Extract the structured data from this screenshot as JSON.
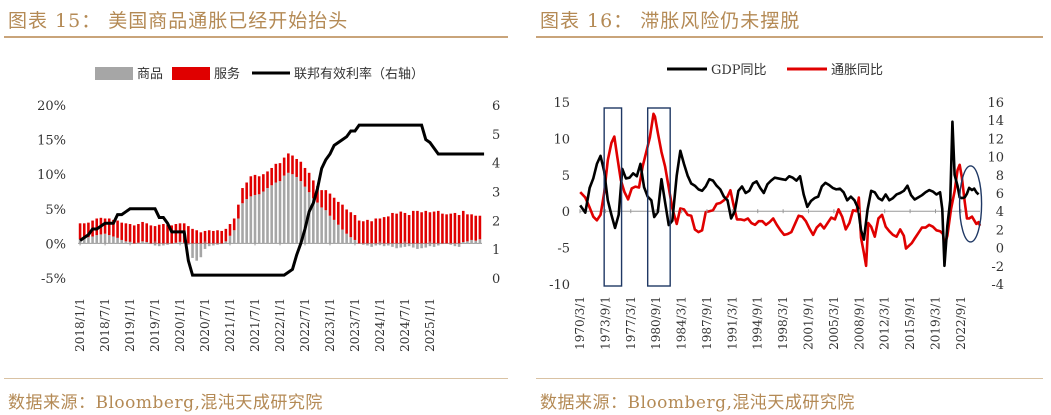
{
  "left": {
    "title": "图表 15：  美国商品通胀已经开始抬头",
    "source": "数据来源：Bloomberg,混沌天成研究院",
    "chart_data": {
      "type": "bar+line",
      "legend": [
        "商品",
        "服务",
        "联邦有效利率（右轴）"
      ],
      "legend_position": "top",
      "y_left": {
        "ticks": [
          "20%",
          "15%",
          "10%",
          "5%",
          "0%",
          "-5%"
        ],
        "range": [
          -5,
          20
        ]
      },
      "y_right": {
        "ticks": [
          "6",
          "5",
          "4",
          "3",
          "2",
          "1",
          "0"
        ],
        "range": [
          0,
          6
        ]
      },
      "x_ticks": [
        "2018/1/1",
        "2018/7/1",
        "2019/1/1",
        "2019/7/1",
        "2020/1/1",
        "2020/7/1",
        "2021/1/1",
        "2021/7/1",
        "2022/1/1",
        "2022/7/1",
        "2023/1/1",
        "2023/7/1",
        "2024/1/1",
        "2024/7/1",
        "2025/1/1"
      ],
      "x_start": "2018-01",
      "goods": [
        0.6,
        0.7,
        0.9,
        1.0,
        1.2,
        1.3,
        1.4,
        1.2,
        1.0,
        0.8,
        0.5,
        0.3,
        0.2,
        0.0,
        0.1,
        0.3,
        0.2,
        -0.1,
        -0.3,
        -0.4,
        -0.3,
        -0.2,
        0.0,
        0.1,
        0.2,
        0.1,
        -0.2,
        -2.1,
        -2.5,
        -2.0,
        -0.8,
        -0.4,
        -0.3,
        -0.2,
        -0.1,
        0.3,
        1.1,
        1.9,
        3.6,
        5.8,
        6.4,
        6.8,
        7.0,
        7.1,
        7.5,
        8.0,
        8.4,
        8.8,
        9.0,
        9.8,
        10.2,
        10.0,
        9.6,
        9.0,
        8.2,
        7.4,
        6.5,
        5.9,
        5.2,
        4.8,
        4.0,
        3.4,
        2.7,
        2.0,
        1.4,
        0.9,
        0.5,
        0.0,
        -0.2,
        -0.3,
        -0.5,
        -0.3,
        -0.2,
        -0.4,
        -0.3,
        -0.5,
        -0.7,
        -0.6,
        -0.5,
        -0.4,
        -0.6,
        -0.8,
        -0.7,
        -0.6,
        -0.4,
        -0.5,
        -0.3,
        -0.1,
        0.0,
        -0.2,
        -0.4,
        -0.5,
        0.2,
        0.3,
        0.5,
        0.4,
        0.6
      ],
      "services": [
        2.3,
        2.2,
        2.1,
        2.3,
        2.4,
        2.4,
        2.2,
        2.4,
        2.4,
        2.5,
        2.5,
        2.6,
        2.6,
        2.6,
        2.7,
        2.8,
        2.7,
        2.6,
        2.5,
        2.7,
        2.8,
        2.7,
        2.6,
        2.7,
        2.7,
        2.8,
        2.5,
        2.1,
        1.9,
        1.6,
        1.8,
        1.9,
        1.8,
        1.9,
        1.8,
        1.8,
        1.7,
        1.7,
        2.0,
        2.2,
        2.4,
        2.9,
        2.9,
        2.6,
        2.5,
        2.4,
        2.5,
        2.7,
        2.6,
        2.6,
        2.8,
        2.7,
        2.6,
        2.8,
        2.7,
        2.8,
        2.6,
        2.4,
        2.5,
        2.9,
        3.2,
        3.2,
        3.3,
        3.6,
        3.5,
        3.6,
        3.6,
        3.3,
        3.2,
        3.4,
        3.2,
        3.6,
        3.6,
        3.8,
        3.9,
        4.4,
        4.3,
        4.6,
        4.4,
        4.1,
        4.7,
        4.7,
        4.5,
        4.7,
        4.5,
        4.6,
        4.7,
        4.3,
        4.2,
        4.3,
        4.4,
        4.1,
        4.5,
        3.9,
        3.7,
        3.6,
        3.4
      ],
      "fed_funds": [
        1.3,
        1.4,
        1.5,
        1.7,
        1.7,
        1.8,
        1.9,
        1.9,
        1.9,
        2.2,
        2.2,
        2.3,
        2.4,
        2.4,
        2.4,
        2.4,
        2.4,
        2.4,
        2.4,
        2.1,
        2.1,
        1.9,
        1.6,
        1.6,
        1.6,
        1.6,
        0.6,
        0.1,
        0.1,
        0.1,
        0.1,
        0.1,
        0.1,
        0.1,
        0.1,
        0.1,
        0.1,
        0.1,
        0.1,
        0.1,
        0.1,
        0.1,
        0.1,
        0.1,
        0.1,
        0.1,
        0.1,
        0.1,
        0.1,
        0.1,
        0.2,
        0.3,
        0.8,
        1.2,
        1.7,
        2.3,
        2.6,
        3.1,
        3.8,
        4.1,
        4.3,
        4.6,
        4.7,
        4.8,
        4.9,
        5.1,
        5.1,
        5.3,
        5.3,
        5.3,
        5.3,
        5.3,
        5.3,
        5.3,
        5.3,
        5.3,
        5.3,
        5.3,
        5.3,
        5.3,
        5.3,
        5.3,
        5.3,
        4.8,
        4.7,
        4.5,
        4.3,
        4.3,
        4.3,
        4.3,
        4.3,
        4.3,
        4.3,
        4.3,
        4.3,
        4.3,
        4.3,
        4.3
      ]
    }
  },
  "right": {
    "title": "图表 16：  滞胀风险仍未摆脱",
    "source": "数据来源：Bloomberg,混沌天成研究院",
    "chart_data": {
      "type": "line",
      "legend": [
        "GDP同比",
        "通胀同比"
      ],
      "legend_position": "top",
      "y_left": {
        "ticks": [
          "15",
          "10",
          "5",
          "0",
          "-5",
          "-10"
        ],
        "range": [
          -10,
          15
        ]
      },
      "y_right": {
        "ticks": [
          "16",
          "14",
          "12",
          "10",
          "8",
          "6",
          "4",
          "2",
          "0",
          "-2",
          "-4"
        ],
        "range": [
          -4,
          16
        ]
      },
      "x_ticks": [
        "1970/3/1",
        "1973/9/1",
        "1977/3/1",
        "1980/9/1",
        "1984/3/1",
        "1987/9/1",
        "1991/3/1",
        "1994/9/1",
        "1998/3/1",
        "2001/9/1",
        "2005/3/1",
        "2008/9/1",
        "2012/3/1",
        "2015/9/1",
        "2019/3/1",
        "2022/9/1"
      ],
      "x_range": [
        1970.17,
        2025.3
      ],
      "gdp": [
        [
          1970.2,
          0.8
        ],
        [
          1970.9,
          -0.2
        ],
        [
          1971.5,
          3.2
        ],
        [
          1972.0,
          4.5
        ],
        [
          1972.5,
          6.5
        ],
        [
          1973.0,
          7.6
        ],
        [
          1973.5,
          5.5
        ],
        [
          1974.0,
          1.5
        ],
        [
          1974.5,
          -0.5
        ],
        [
          1975.0,
          -2.3
        ],
        [
          1975.5,
          -0.5
        ],
        [
          1976.0,
          5.8
        ],
        [
          1976.5,
          4.5
        ],
        [
          1977.0,
          4.6
        ],
        [
          1977.5,
          5.2
        ],
        [
          1978.0,
          4.8
        ],
        [
          1978.5,
          6.5
        ],
        [
          1979.0,
          3.3
        ],
        [
          1979.5,
          2.0
        ],
        [
          1980.0,
          1.5
        ],
        [
          1980.4,
          -0.8
        ],
        [
          1980.9,
          -0.1
        ],
        [
          1981.4,
          4.4
        ],
        [
          1981.9,
          1.2
        ],
        [
          1982.4,
          -1.9
        ],
        [
          1982.9,
          -1.3
        ],
        [
          1983.5,
          4.9
        ],
        [
          1984.0,
          8.3
        ],
        [
          1984.5,
          6.5
        ],
        [
          1985.0,
          4.9
        ],
        [
          1985.5,
          3.8
        ],
        [
          1986.0,
          3.5
        ],
        [
          1986.5,
          3.0
        ],
        [
          1987.0,
          2.8
        ],
        [
          1987.5,
          3.4
        ],
        [
          1988.0,
          4.4
        ],
        [
          1988.5,
          4.2
        ],
        [
          1989.0,
          3.5
        ],
        [
          1989.5,
          3.0
        ],
        [
          1990.0,
          2.0
        ],
        [
          1990.5,
          1.5
        ],
        [
          1991.0,
          -1.0
        ],
        [
          1991.5,
          0.0
        ],
        [
          1992.0,
          2.8
        ],
        [
          1992.5,
          3.4
        ],
        [
          1993.0,
          2.5
        ],
        [
          1993.5,
          2.8
        ],
        [
          1994.0,
          3.8
        ],
        [
          1994.5,
          4.1
        ],
        [
          1995.0,
          3.2
        ],
        [
          1995.5,
          2.5
        ],
        [
          1996.0,
          3.7
        ],
        [
          1996.5,
          4.2
        ],
        [
          1997.0,
          4.6
        ],
        [
          1997.5,
          4.5
        ],
        [
          1998.0,
          4.4
        ],
        [
          1998.5,
          4.3
        ],
        [
          1999.0,
          4.8
        ],
        [
          1999.5,
          4.6
        ],
        [
          2000.0,
          4.2
        ],
        [
          2000.5,
          4.8
        ],
        [
          2001.0,
          2.3
        ],
        [
          2001.5,
          0.6
        ],
        [
          2002.0,
          1.4
        ],
        [
          2002.5,
          1.8
        ],
        [
          2003.0,
          2.0
        ],
        [
          2003.5,
          3.4
        ],
        [
          2004.0,
          3.9
        ],
        [
          2004.5,
          3.6
        ],
        [
          2005.0,
          3.2
        ],
        [
          2005.5,
          3.0
        ],
        [
          2006.0,
          3.1
        ],
        [
          2006.5,
          2.6
        ],
        [
          2007.0,
          1.5
        ],
        [
          2007.5,
          2.0
        ],
        [
          2008.0,
          1.5
        ],
        [
          2008.5,
          0.4
        ],
        [
          2008.9,
          -2.6
        ],
        [
          2009.3,
          -3.9
        ],
        [
          2009.8,
          0.2
        ],
        [
          2010.3,
          2.8
        ],
        [
          2010.8,
          2.6
        ],
        [
          2011.3,
          1.8
        ],
        [
          2011.8,
          1.5
        ],
        [
          2012.3,
          2.3
        ],
        [
          2012.8,
          1.5
        ],
        [
          2013.3,
          1.8
        ],
        [
          2013.8,
          2.3
        ],
        [
          2014.3,
          2.5
        ],
        [
          2014.8,
          2.8
        ],
        [
          2015.3,
          3.5
        ],
        [
          2015.8,
          2.2
        ],
        [
          2016.3,
          1.6
        ],
        [
          2016.8,
          1.9
        ],
        [
          2017.3,
          2.2
        ],
        [
          2017.8,
          2.6
        ],
        [
          2018.3,
          2.9
        ],
        [
          2018.8,
          2.7
        ],
        [
          2019.3,
          2.3
        ],
        [
          2019.8,
          2.6
        ],
        [
          2020.1,
          0.3
        ],
        [
          2020.4,
          -7.5
        ],
        [
          2020.8,
          -2.0
        ],
        [
          2021.2,
          1.5
        ],
        [
          2021.5,
          12.3
        ],
        [
          2021.8,
          5.0
        ],
        [
          2022.2,
          3.5
        ],
        [
          2022.5,
          1.9
        ],
        [
          2022.8,
          1.8
        ],
        [
          2023.2,
          1.9
        ],
        [
          2023.5,
          2.4
        ],
        [
          2023.8,
          3.2
        ],
        [
          2024.2,
          2.9
        ],
        [
          2024.5,
          3.1
        ],
        [
          2024.8,
          2.6
        ],
        [
          2025.1,
          2.3
        ]
      ],
      "cpi": [
        [
          1970.2,
          6.1
        ],
        [
          1970.9,
          5.5
        ],
        [
          1971.5,
          4.4
        ],
        [
          1972.0,
          3.4
        ],
        [
          1972.5,
          3.0
        ],
        [
          1973.0,
          3.6
        ],
        [
          1973.5,
          6.0
        ],
        [
          1974.0,
          9.6
        ],
        [
          1974.5,
          11.5
        ],
        [
          1974.9,
          12.2
        ],
        [
          1975.3,
          10.0
        ],
        [
          1975.8,
          7.4
        ],
        [
          1976.3,
          6.1
        ],
        [
          1976.8,
          5.3
        ],
        [
          1977.3,
          6.5
        ],
        [
          1977.8,
          6.7
        ],
        [
          1978.3,
          6.6
        ],
        [
          1978.8,
          8.9
        ],
        [
          1979.3,
          10.5
        ],
        [
          1979.8,
          12.1
        ],
        [
          1980.3,
          14.7
        ],
        [
          1980.5,
          14.4
        ],
        [
          1980.9,
          12.6
        ],
        [
          1981.4,
          10.5
        ],
        [
          1981.9,
          8.9
        ],
        [
          1982.4,
          6.6
        ],
        [
          1982.9,
          4.3
        ],
        [
          1983.5,
          2.6
        ],
        [
          1984.0,
          4.3
        ],
        [
          1984.5,
          4.2
        ],
        [
          1985.0,
          3.6
        ],
        [
          1985.5,
          3.5
        ],
        [
          1986.0,
          2.0
        ],
        [
          1986.5,
          1.7
        ],
        [
          1987.0,
          1.9
        ],
        [
          1987.5,
          3.9
        ],
        [
          1988.0,
          4.0
        ],
        [
          1988.5,
          4.1
        ],
        [
          1989.0,
          4.8
        ],
        [
          1989.5,
          4.9
        ],
        [
          1990.0,
          5.2
        ],
        [
          1990.5,
          5.6
        ],
        [
          1990.9,
          6.3
        ],
        [
          1991.3,
          4.8
        ],
        [
          1991.8,
          3.1
        ],
        [
          1992.3,
          3.1
        ],
        [
          1992.8,
          3.0
        ],
        [
          1993.3,
          3.2
        ],
        [
          1993.8,
          2.7
        ],
        [
          1994.3,
          2.5
        ],
        [
          1994.8,
          2.9
        ],
        [
          1995.3,
          2.9
        ],
        [
          1995.8,
          2.5
        ],
        [
          1996.3,
          2.8
        ],
        [
          1996.8,
          3.2
        ],
        [
          1997.3,
          2.5
        ],
        [
          1997.8,
          1.9
        ],
        [
          1998.3,
          1.4
        ],
        [
          1998.8,
          1.5
        ],
        [
          1999.3,
          1.7
        ],
        [
          1999.8,
          2.6
        ],
        [
          2000.3,
          3.5
        ],
        [
          2000.8,
          3.4
        ],
        [
          2001.3,
          2.9
        ],
        [
          2001.8,
          2.1
        ],
        [
          2002.3,
          1.4
        ],
        [
          2002.8,
          2.2
        ],
        [
          2003.3,
          2.6
        ],
        [
          2003.8,
          2.1
        ],
        [
          2004.3,
          2.7
        ],
        [
          2004.8,
          3.3
        ],
        [
          2005.3,
          3.1
        ],
        [
          2005.8,
          4.2
        ],
        [
          2006.3,
          3.4
        ],
        [
          2006.8,
          2.0
        ],
        [
          2007.3,
          2.7
        ],
        [
          2007.8,
          4.1
        ],
        [
          2008.3,
          4.0
        ],
        [
          2008.6,
          5.5
        ],
        [
          2008.9,
          1.1
        ],
        [
          2009.3,
          -0.6
        ],
        [
          2009.6,
          -2.0
        ],
        [
          2009.9,
          2.7
        ],
        [
          2010.3,
          2.3
        ],
        [
          2010.8,
          1.2
        ],
        [
          2011.3,
          3.2
        ],
        [
          2011.8,
          3.6
        ],
        [
          2012.3,
          2.3
        ],
        [
          2012.8,
          1.8
        ],
        [
          2013.3,
          1.4
        ],
        [
          2013.8,
          1.2
        ],
        [
          2014.3,
          2.0
        ],
        [
          2014.8,
          1.3
        ],
        [
          2015.1,
          -0.1
        ],
        [
          2015.5,
          0.2
        ],
        [
          2015.9,
          0.5
        ],
        [
          2016.3,
          1.0
        ],
        [
          2016.8,
          1.6
        ],
        [
          2017.3,
          2.2
        ],
        [
          2017.8,
          2.2
        ],
        [
          2018.3,
          2.5
        ],
        [
          2018.8,
          2.3
        ],
        [
          2019.3,
          1.9
        ],
        [
          2019.8,
          1.8
        ],
        [
          2020.2,
          1.5
        ],
        [
          2020.4,
          0.2
        ],
        [
          2020.8,
          1.3
        ],
        [
          2021.3,
          4.2
        ],
        [
          2021.8,
          6.2
        ],
        [
          2022.2,
          8.5
        ],
        [
          2022.5,
          9.1
        ],
        [
          2022.8,
          7.7
        ],
        [
          2023.2,
          5.0
        ],
        [
          2023.5,
          3.2
        ],
        [
          2023.8,
          3.2
        ],
        [
          2024.2,
          3.4
        ],
        [
          2024.5,
          3.0
        ],
        [
          2024.8,
          2.6
        ],
        [
          2025.1,
          2.8
        ],
        [
          2025.3,
          2.4
        ]
      ],
      "highlight_periods": [
        [
          1973.5,
          1975.9
        ],
        [
          1979.5,
          1982.6
        ]
      ],
      "highlight_ellipse_year": 2024.0
    }
  }
}
